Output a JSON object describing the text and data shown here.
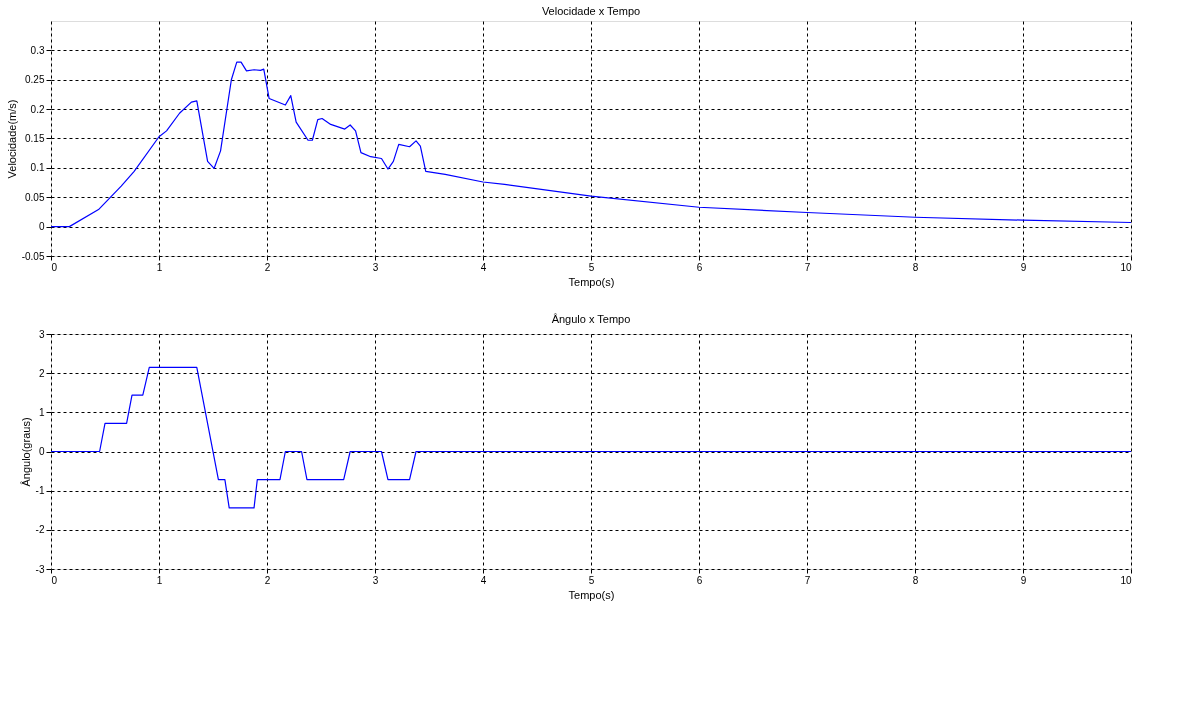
{
  "chart_data": [
    {
      "type": "line",
      "title": "Velocidade x Tempo",
      "xlabel": "Tempo(s)",
      "ylabel": "Velocidade(m/s)",
      "xlim": [
        0,
        10
      ],
      "xticks": [
        0,
        1,
        2,
        3,
        4,
        5,
        6,
        7,
        8,
        9,
        10
      ],
      "ylim": [
        -0.05,
        0.35
      ],
      "yticks": [
        -0.05,
        0,
        0.05,
        0.1,
        0.15,
        0.2,
        0.25,
        0.3
      ],
      "grid": true,
      "line_style": "solid",
      "series": [
        {
          "color": "#0000ff",
          "x": [
            0,
            0.17,
            0.44,
            0.65,
            0.77,
            1.0,
            1.07,
            1.19,
            1.3,
            1.35,
            1.45,
            1.51,
            1.57,
            1.67,
            1.72,
            1.76,
            1.81,
            1.88,
            1.94,
            1.97,
            2.02,
            2.17,
            2.22,
            2.27,
            2.38,
            2.42,
            2.47,
            2.51,
            2.59,
            2.72,
            2.77,
            2.82,
            2.87,
            2.96,
            3.06,
            3.12,
            3.17,
            3.22,
            3.32,
            3.38,
            3.42,
            3.47,
            3.65,
            4.0,
            4.2,
            5.0,
            6.0,
            7.0,
            8.0,
            9.0,
            10.0
          ],
          "values": [
            0,
            0,
            0.029,
            0.069,
            0.094,
            0.153,
            0.163,
            0.193,
            0.212,
            0.214,
            0.111,
            0.099,
            0.129,
            0.25,
            0.28,
            0.28,
            0.265,
            0.267,
            0.266,
            0.268,
            0.218,
            0.207,
            0.223,
            0.178,
            0.147,
            0.147,
            0.182,
            0.184,
            0.174,
            0.166,
            0.173,
            0.163,
            0.126,
            0.119,
            0.116,
            0.098,
            0.111,
            0.14,
            0.136,
            0.146,
            0.137,
            0.094,
            0.089,
            0.076,
            0.072,
            0.052,
            0.033,
            0.024,
            0.016,
            0.011,
            0.007
          ]
        }
      ]
    },
    {
      "type": "line",
      "title": "Ângulo x Tempo",
      "xlabel": "Tempo(s)",
      "ylabel": "Ângulo(graus)",
      "xlim": [
        0,
        10
      ],
      "xticks": [
        0,
        1,
        2,
        3,
        4,
        5,
        6,
        7,
        8,
        9,
        10
      ],
      "ylim": [
        -3,
        3
      ],
      "yticks": [
        -3,
        -2,
        -1,
        0,
        1,
        2,
        3
      ],
      "grid": true,
      "line_style": "solid",
      "series": [
        {
          "color": "#0000ff",
          "x": [
            0,
            0.45,
            0.5,
            0.7,
            0.75,
            0.85,
            0.91,
            1.35,
            1.55,
            1.61,
            1.65,
            1.88,
            1.91,
            2.12,
            2.17,
            2.32,
            2.37,
            2.71,
            2.77,
            3.06,
            3.12,
            3.32,
            3.38,
            10
          ],
          "values": [
            0,
            0,
            0.72,
            0.72,
            1.44,
            1.44,
            2.15,
            2.15,
            -0.72,
            -0.72,
            -1.44,
            -1.44,
            -0.72,
            -0.72,
            0,
            0,
            -0.72,
            -0.72,
            0,
            0,
            -0.72,
            -0.72,
            0,
            0
          ]
        }
      ]
    }
  ]
}
